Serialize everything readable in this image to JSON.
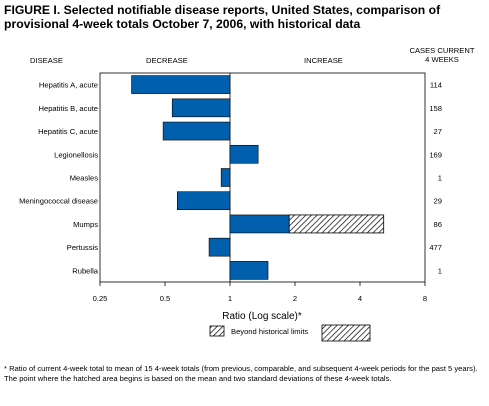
{
  "figure": {
    "title": "FIGURE I. Selected notifiable disease reports, United States, comparison of provisional 4-week totals October 7, 2006, with historical data",
    "footnote": "* Ratio of current 4-week total to mean of 15 4-week totals (from previous, comparable, and subsequent 4-week periods for the past 5 years). The point where the hatched area begins is based on the mean and two standard deviations of these 4-week totals."
  },
  "headers": {
    "disease": "DISEASE",
    "decrease": "DECREASE",
    "increase": "INCREASE",
    "cases_line1": "CASES CURRENT",
    "cases_line2": "4 WEEKS"
  },
  "chart_data": {
    "type": "bar",
    "orientation": "horizontal",
    "xscale": "log2",
    "xlim": [
      0.25,
      8
    ],
    "xlabel": "Ratio (Log scale)*",
    "xticks": [
      0.25,
      0.5,
      1,
      2,
      4,
      8
    ],
    "xtick_labels": [
      "0.25",
      "0.5",
      "1",
      "2",
      "4",
      "8"
    ],
    "baseline": 1,
    "categories": [
      "Hepatitis A, acute",
      "Hepatitis B, acute",
      "Hepatitis C, acute",
      "Legionellosis",
      "Measles",
      "Meningococcal disease",
      "Mumps",
      "Pertussis",
      "Rubella"
    ],
    "values": [
      0.35,
      0.54,
      0.49,
      1.35,
      0.91,
      0.57,
      5.15,
      0.8,
      1.5
    ],
    "beyond_historical_limits_start": [
      null,
      null,
      null,
      null,
      null,
      null,
      1.88,
      null,
      null
    ],
    "cases_current_4_weeks": [
      "114",
      "158",
      "27",
      "169",
      "1",
      "29",
      "86",
      "477",
      "1"
    ],
    "legend": {
      "label": "Beyond historical limits",
      "placement": "below-axis"
    },
    "colors": {
      "bar": "#0060AE",
      "hatch": "#000000"
    }
  }
}
